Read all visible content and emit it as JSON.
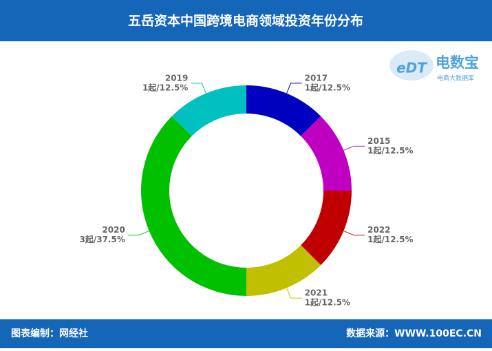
{
  "chart_data": {
    "type": "donut",
    "title": "五岳资本中国跨境电商领域投资年份分布",
    "categories": [
      "2017",
      "2015",
      "2022",
      "2021",
      "2020",
      "2019"
    ],
    "values": [
      1,
      1,
      1,
      1,
      3,
      1
    ],
    "value_labels": [
      "1起/12.5%",
      "1起/12.5%",
      "1起/12.5%",
      "1起/12.5%",
      "3起/37.5%",
      "1起/12.5%"
    ],
    "colors": [
      "#0000c0",
      "#c000c0",
      "#c00000",
      "#c0c000",
      "#00c000",
      "#00c0c0"
    ]
  },
  "logo": {
    "mark": "eDT",
    "name": "电数宝",
    "subtitle": "电商大数据库"
  },
  "footer": {
    "left": "图表编制：网经社",
    "right": "数据来源：WWW.100EC.CN"
  }
}
